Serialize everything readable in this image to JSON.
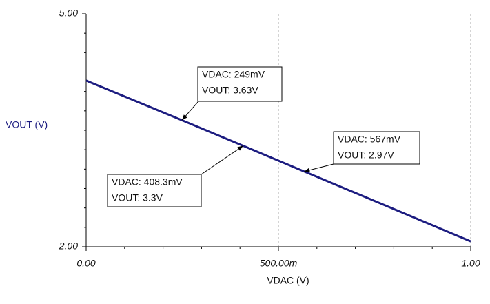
{
  "chart_data": {
    "type": "line",
    "x_label": "VDAC (V)",
    "y_label": "VOUT (V)",
    "x": [
      0,
      0.249,
      0.4083,
      0.567,
      1
    ],
    "series": [
      {
        "name": "VOUT",
        "color": "#1c1c80",
        "values": [
          4.14,
          3.63,
          3.3,
          2.97,
          2.07
        ]
      }
    ],
    "xlim": [
      0,
      1
    ],
    "ylim": [
      2,
      5
    ],
    "xticks": [
      {
        "value": 0,
        "label": "0.00"
      },
      {
        "value": 0.5,
        "label": "500.00m"
      },
      {
        "value": 1,
        "label": "1.00"
      }
    ],
    "yticks": [
      {
        "value": 2,
        "label": "2.00"
      },
      {
        "value": 5,
        "label": "5.00"
      }
    ],
    "xminor": [
      0.1,
      0.2,
      0.3,
      0.4,
      0.6,
      0.7,
      0.8,
      0.9
    ],
    "yminor": [
      2.25,
      2.5,
      2.75,
      3,
      3.25,
      3.5,
      3.75,
      4,
      4.25,
      4.5,
      4.75
    ],
    "grid": "x",
    "annotations": [
      {
        "lines": [
          "VDAC: 249mV",
          "VOUT: 3.63V"
        ],
        "x": 0.249,
        "y": 3.63
      },
      {
        "lines": [
          "VDAC: 408.3mV",
          "VOUT: 3.3V"
        ],
        "x": 0.4083,
        "y": 3.3
      },
      {
        "lines": [
          "VDAC: 567mV",
          "VOUT: 2.97V"
        ],
        "x": 0.567,
        "y": 2.97
      }
    ]
  }
}
